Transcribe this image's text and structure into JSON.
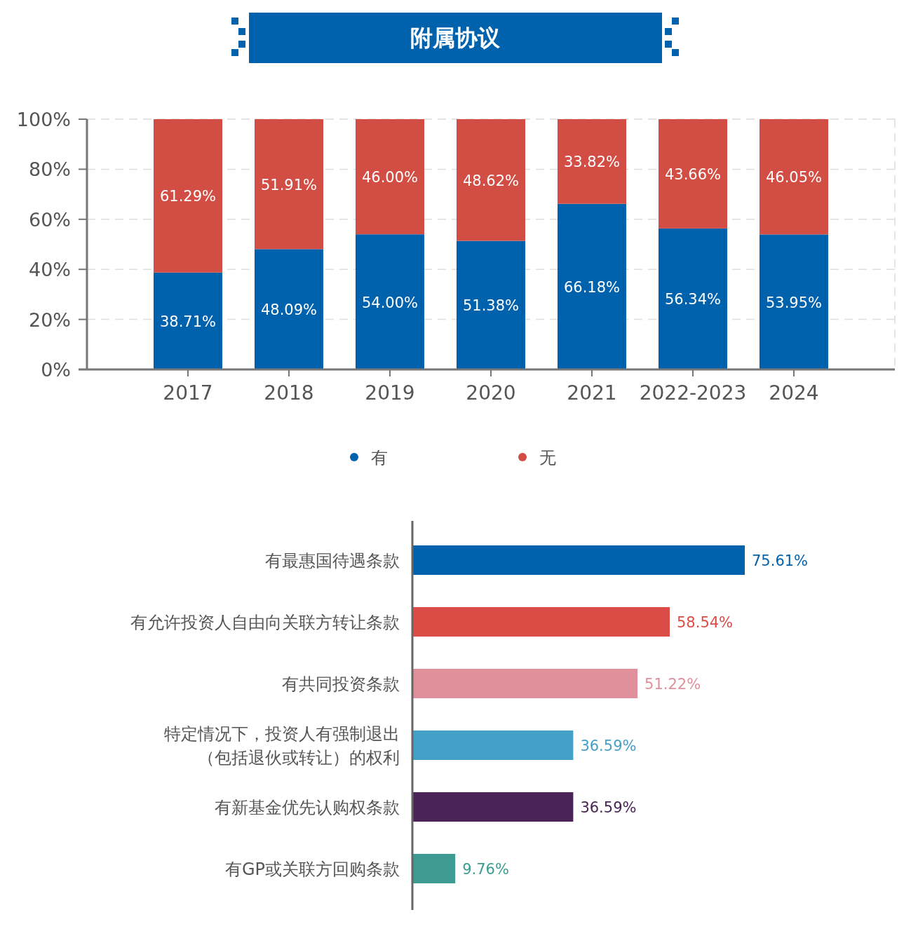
{
  "chart_data": [
    {
      "type": "bar",
      "title": "附属协议",
      "stacked": true,
      "categories": [
        "2017",
        "2018",
        "2019",
        "2020",
        "2021",
        "2022-2023",
        "2024"
      ],
      "series": [
        {
          "name": "有",
          "color": "#0062ad",
          "values": [
            38.71,
            48.09,
            54.0,
            51.38,
            66.18,
            56.34,
            53.95
          ],
          "value_labels": [
            "38.71%",
            "48.09%",
            "54.00%",
            "51.38%",
            "66.18%",
            "56.34%",
            "53.95%"
          ]
        },
        {
          "name": "无",
          "color": "#d24e45",
          "values": [
            61.29,
            51.91,
            46.0,
            48.62,
            33.82,
            43.66,
            46.05
          ],
          "value_labels": [
            "61.29%",
            "51.91%",
            "46.00%",
            "48.62%",
            "33.82%",
            "43.66%",
            "46.05%"
          ]
        }
      ],
      "ylim": [
        0,
        100
      ],
      "yticks": [
        {
          "value": 0,
          "label": "0%"
        },
        {
          "value": 20,
          "label": "20%"
        },
        {
          "value": 40,
          "label": "40%"
        },
        {
          "value": 60,
          "label": "60%"
        },
        {
          "value": 80,
          "label": "80%"
        },
        {
          "value": 100,
          "label": "100%"
        }
      ],
      "grid": "y",
      "legend": "bottom"
    },
    {
      "type": "bar",
      "orientation": "horizontal",
      "categories": [
        "有最惠国待遇条款",
        "有允许投资人自由向关联方转让条款",
        "有共同投资条款",
        "特定情况下，投资人有强制退出（包括退伙或转让）的权利",
        "有新基金优先认购权条款",
        "有GP或关联方回购条款"
      ],
      "values": [
        75.61,
        58.54,
        51.22,
        36.59,
        36.59,
        9.76
      ],
      "colors": [
        "#0062ad",
        "#dc4c46",
        "#e0909a",
        "#45a0c8",
        "#4a2357",
        "#3d9b94"
      ],
      "value_labels": [
        "75.61%",
        "58.54%",
        "51.22%",
        "36.59%",
        "36.59%",
        "9.76%"
      ]
    }
  ]
}
